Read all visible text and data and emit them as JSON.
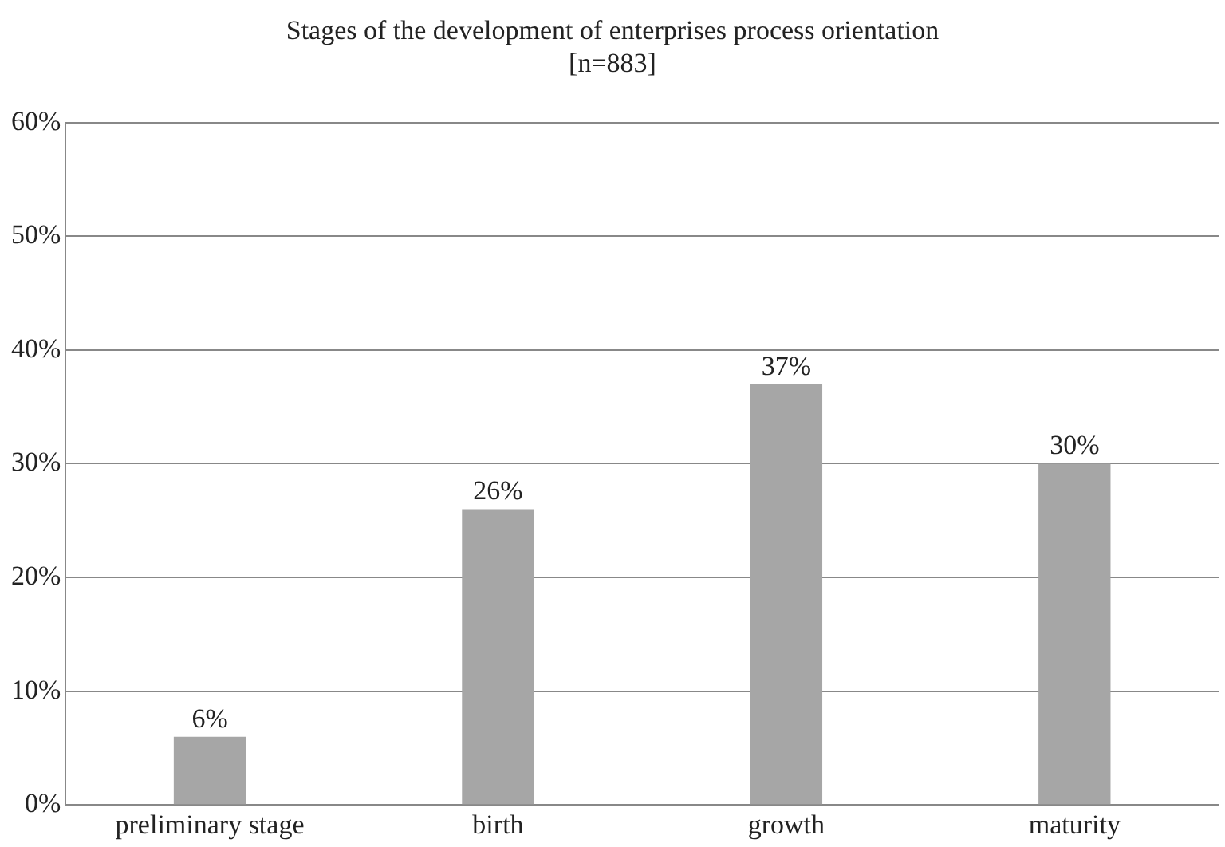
{
  "chart_data": {
    "type": "bar",
    "title": "Stages of the development of enterprises process orientation\n[n=883]",
    "categories": [
      "preliminary stage",
      "birth",
      "growth",
      "maturity"
    ],
    "values": [
      6,
      26,
      37,
      30
    ],
    "color": "#a6a6a6",
    "value_labels": [
      "6%",
      "26%",
      "37%",
      "30%"
    ],
    "ylim": [
      0,
      60
    ],
    "yticks": [
      {
        "value": 0,
        "label": "0%"
      },
      {
        "value": 10,
        "label": "10%"
      },
      {
        "value": 20,
        "label": "20%"
      },
      {
        "value": 30,
        "label": "30%"
      },
      {
        "value": 40,
        "label": "40%"
      },
      {
        "value": 50,
        "label": "50%"
      },
      {
        "value": 60,
        "label": "60%"
      }
    ],
    "grid": "y",
    "legend": false
  }
}
